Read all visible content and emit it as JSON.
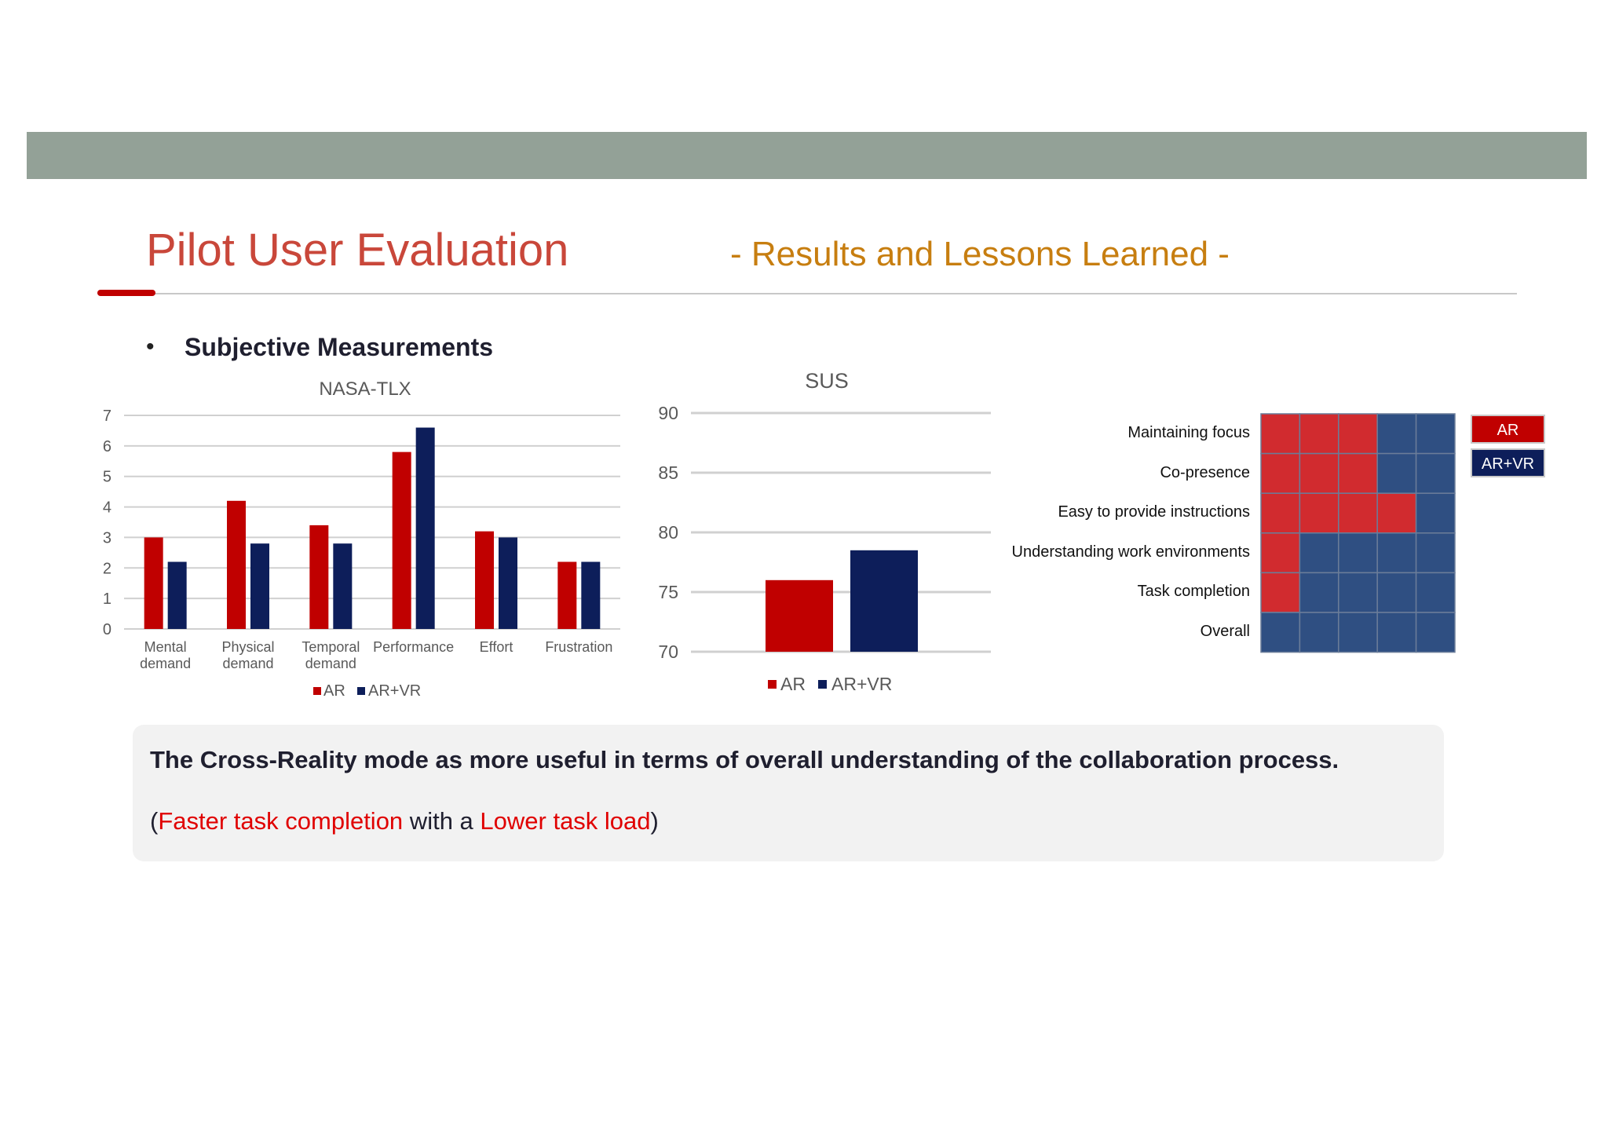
{
  "slide": {
    "title": "Pilot User Evaluation",
    "subtitle": "- Results and Lessons Learned -",
    "bullet": "•",
    "section": "Subjective Measurements"
  },
  "colors": {
    "ar": "#c00000",
    "arvr": "#0d1e5a",
    "matrix_ar": "#d12b2f",
    "matrix_arvr": "#2f4f82"
  },
  "chart_data": [
    {
      "type": "bar",
      "title": "NASA-TLX",
      "categories": [
        "Mental\ndemand",
        "Physical\ndemand",
        "Temporal\ndemand",
        "Performance",
        "Effort",
        "Frustration"
      ],
      "series": [
        {
          "name": "AR",
          "values": [
            3.0,
            4.2,
            3.4,
            5.8,
            3.2,
            2.2
          ]
        },
        {
          "name": "AR+VR",
          "values": [
            2.2,
            2.8,
            2.8,
            6.6,
            3.0,
            2.2
          ]
        }
      ],
      "ylim": [
        0,
        7
      ],
      "yticks": [
        0,
        1,
        2,
        3,
        4,
        5,
        6,
        7
      ],
      "grid": true,
      "legend": "bottom"
    },
    {
      "type": "bar",
      "title": "SUS",
      "categories": [
        ""
      ],
      "series": [
        {
          "name": "AR",
          "values": [
            76
          ]
        },
        {
          "name": "AR+VR",
          "values": [
            78.5
          ]
        }
      ],
      "ylim": [
        70,
        90
      ],
      "yticks": [
        70,
        75,
        80,
        85,
        90
      ],
      "grid": true,
      "legend": "bottom"
    },
    {
      "type": "heatmap",
      "rows": [
        "Maintaining focus",
        "Co-presence",
        "Easy to provide instructions",
        "Understanding work environments",
        "Task completion",
        "Overall"
      ],
      "columns": 5,
      "ar_counts": [
        3,
        3,
        4,
        1,
        1,
        0
      ],
      "legend": [
        "AR",
        "AR+VR"
      ],
      "legend_position": "right"
    }
  ],
  "callout": {
    "main": "The Cross-Reality mode as more useful in terms of overall understanding of the collaboration process.",
    "open": "(",
    "hl1": "Faster task completion",
    "mid": " with a ",
    "hl2": "Lower task load",
    "close": ")"
  }
}
